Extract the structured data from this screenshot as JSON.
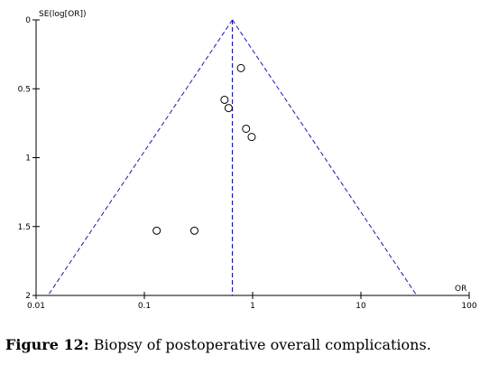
{
  "chart_data": {
    "type": "scatter",
    "title": "",
    "xlabel": "OR",
    "ylabel": "SE(log[OR])",
    "x_scale": "log",
    "xlim": [
      0.01,
      100
    ],
    "ylim": [
      0,
      2
    ],
    "y_inverted": true,
    "x_ticks": [
      0.01,
      0.1,
      1,
      10,
      100
    ],
    "x_tick_labels": [
      "0.01",
      "0.1",
      "1",
      "10",
      "100"
    ],
    "y_ticks": [
      0,
      0.5,
      1,
      1.5,
      2
    ],
    "y_tick_labels": [
      "0",
      "0.5",
      "1",
      "1.5",
      "2"
    ],
    "pooled_or": 0.65,
    "points": [
      {
        "or": 0.78,
        "se": 0.35
      },
      {
        "or": 0.55,
        "se": 0.58
      },
      {
        "or": 0.6,
        "se": 0.64
      },
      {
        "or": 0.87,
        "se": 0.79
      },
      {
        "or": 0.98,
        "se": 0.85
      },
      {
        "or": 0.13,
        "se": 1.53
      },
      {
        "or": 0.29,
        "se": 1.53
      }
    ],
    "grid": false,
    "legend": "none",
    "colors": {
      "funnel": "#1a1aa8",
      "marker": "#000000",
      "axis": "#000000"
    }
  },
  "caption": {
    "label": "Figure 12:",
    "text": " Biopsy of postoperative overall complications."
  }
}
